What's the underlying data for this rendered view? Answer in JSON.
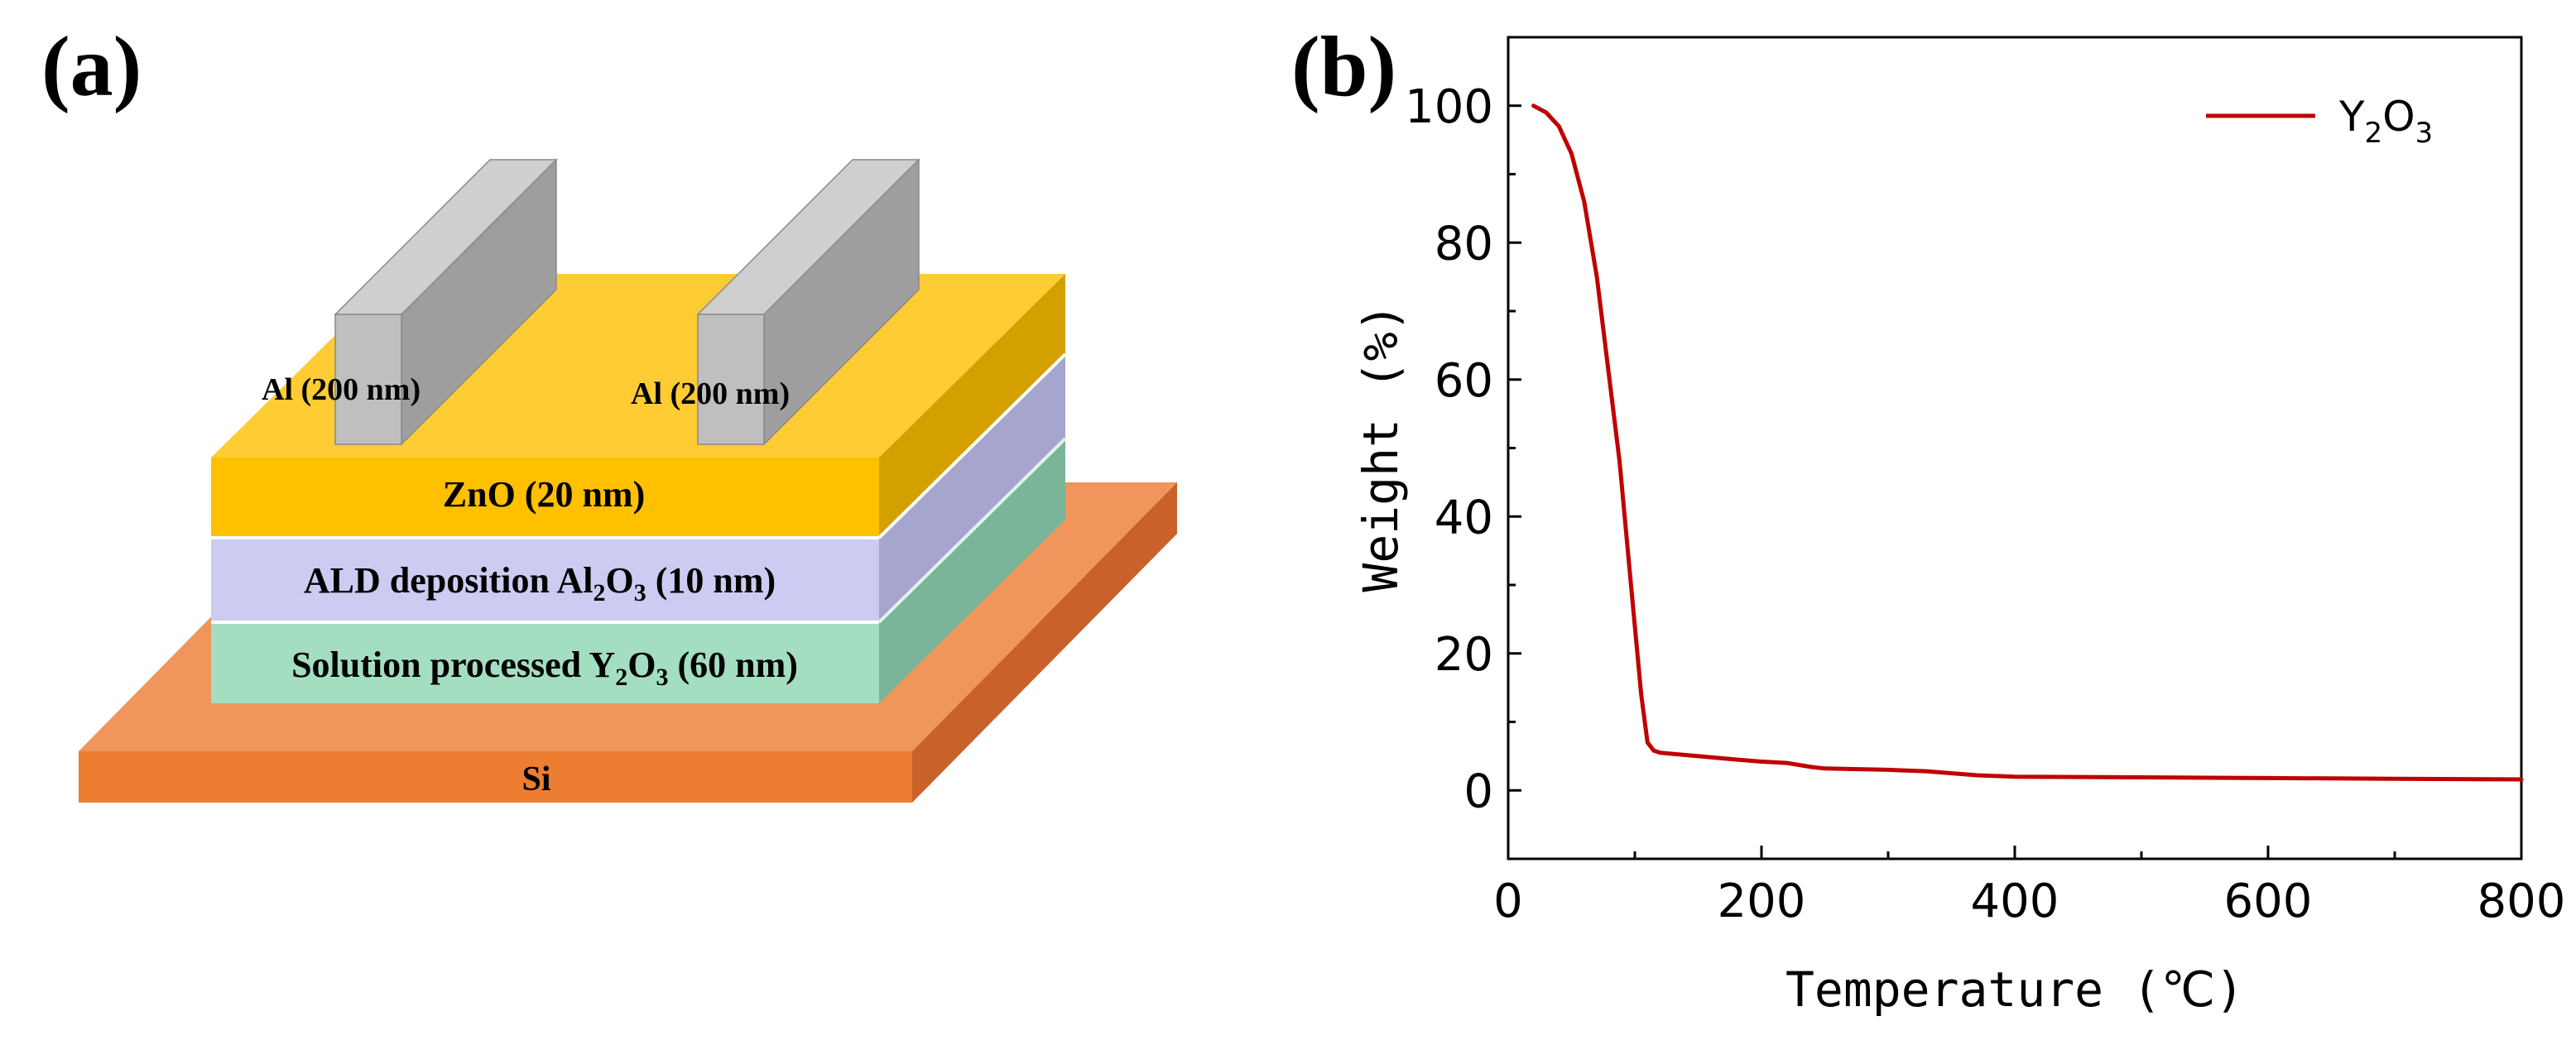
{
  "panel_a": {
    "label": "(a)",
    "layers": {
      "substrate": "Si",
      "y2o3": {
        "prefix": "Solution processed Y",
        "sub1": "2",
        "mid": "O",
        "sub2": "3",
        "suffix": " (60 nm)"
      },
      "al2o3": {
        "prefix": "ALD deposition Al",
        "sub1": "2",
        "mid": "O",
        "sub2": "3",
        "suffix": " (10 nm)"
      },
      "zno": "ZnO (20 nm)",
      "electrode_left": "Al (200 nm)",
      "electrode_right": "Al (200 nm)"
    },
    "colors": {
      "si_front": "#ED7D31",
      "si_top": "#F0955C",
      "si_side": "#C8612A",
      "y2o3_front": "#A3DEC0",
      "y2o3_side": "#7AB59A",
      "al2o3_front": "#CCCCF2",
      "al2o3_side": "#A5A5CE",
      "zno_front": "#FFC000",
      "zno_top": "#FFCC33",
      "zno_side": "#D4A000",
      "al_front": "#BFBFBF",
      "al_top": "#CFCFCF",
      "al_side": "#9E9E9E"
    }
  },
  "panel_b": {
    "label": "(b)",
    "legend_base": "Y",
    "legend_sub1": "2",
    "legend_mid": "O",
    "legend_sub2": "3"
  },
  "chart_data": {
    "type": "line",
    "title": "",
    "xlabel": "Temperature (℃)",
    "ylabel": "Weight (%)",
    "xlim": [
      0,
      800
    ],
    "ylim": [
      -10,
      110
    ],
    "xticks": [
      "0",
      "200",
      "400",
      "600",
      "800"
    ],
    "yticks": [
      "0",
      "20",
      "40",
      "60",
      "80",
      "100"
    ],
    "xtick_values": [
      0,
      200,
      400,
      600,
      800
    ],
    "ytick_values": [
      0,
      20,
      40,
      60,
      80,
      100
    ],
    "grid": false,
    "legend_position": "top-right",
    "series": [
      {
        "name": "Y2O3",
        "color": "#C00000",
        "x": [
          20,
          30,
          40,
          50,
          60,
          70,
          80,
          88,
          95,
          100,
          105,
          110,
          115,
          120,
          150,
          180,
          200,
          220,
          240,
          250,
          300,
          330,
          370,
          400,
          500,
          600,
          700,
          800
        ],
        "y": [
          100,
          99,
          97,
          93,
          86,
          75,
          60,
          48,
          34,
          24,
          14,
          7,
          5.8,
          5.5,
          5.0,
          4.5,
          4.2,
          4.0,
          3.4,
          3.2,
          3.0,
          2.8,
          2.2,
          2.0,
          1.9,
          1.8,
          1.7,
          1.6
        ]
      }
    ]
  }
}
